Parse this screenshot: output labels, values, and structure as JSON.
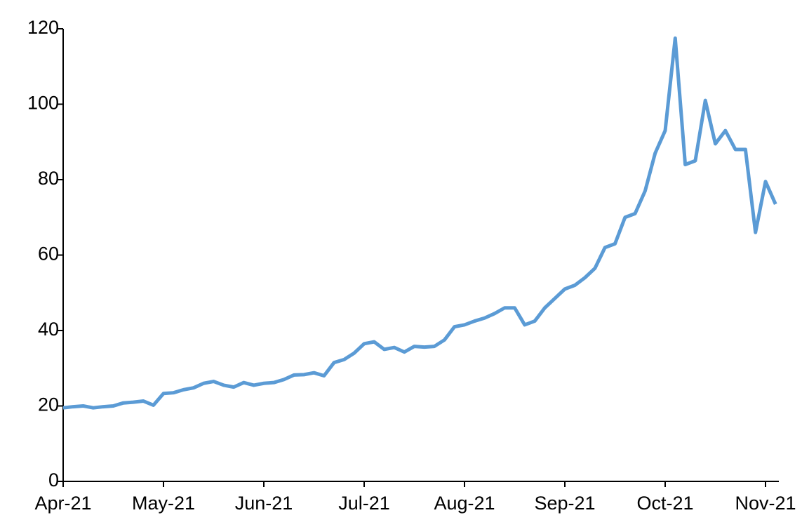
{
  "chart_data": {
    "type": "line",
    "categories": [
      "Apr-21",
      null,
      null,
      null,
      null,
      null,
      null,
      null,
      null,
      null,
      "May-21",
      null,
      null,
      null,
      null,
      null,
      null,
      null,
      null,
      null,
      "Jun-21",
      null,
      null,
      null,
      null,
      null,
      null,
      null,
      null,
      null,
      "Jul-21",
      null,
      null,
      null,
      null,
      null,
      null,
      null,
      null,
      null,
      "Aug-21",
      null,
      null,
      null,
      null,
      null,
      null,
      null,
      null,
      null,
      "Sep-21",
      null,
      null,
      null,
      null,
      null,
      null,
      null,
      null,
      null,
      "Oct-21",
      null,
      null,
      null,
      null,
      null,
      null,
      null,
      null,
      null,
      "Nov-21",
      null
    ],
    "series": [
      {
        "color": "#5b9bd5",
        "values": [
          19.5,
          19.8,
          20,
          19.5,
          19.8,
          20,
          20.8,
          21,
          21.3,
          20.2,
          23.3,
          23.5,
          24.3,
          24.8,
          26,
          26.5,
          25.5,
          25,
          26.2,
          25.5,
          26,
          26.2,
          27,
          28.2,
          28.3,
          28.8,
          28,
          31.5,
          32.3,
          34,
          36.5,
          37,
          35,
          35.5,
          34.3,
          35.8,
          35.6,
          35.8,
          37.5,
          41,
          41.5,
          42.5,
          43.3,
          44.5,
          46,
          46,
          41.5,
          42.5,
          46,
          48.5,
          51,
          52,
          54,
          56.5,
          62,
          63,
          70,
          71,
          77,
          87,
          93,
          117.5,
          84,
          85,
          101,
          89.5,
          93,
          88,
          88,
          66,
          79.5,
          73.5
        ]
      }
    ],
    "ylim": [
      0,
      120
    ],
    "yticks": [
      0,
      20,
      40,
      60,
      80,
      100,
      120
    ],
    "grid": false
  }
}
